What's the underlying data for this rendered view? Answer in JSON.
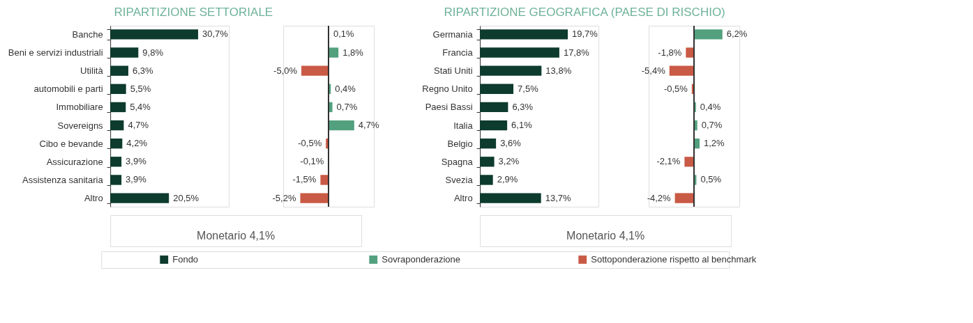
{
  "chart_data": [
    {
      "type": "bar",
      "orientation": "horizontal",
      "title": "RIPARTIZIONE SETTORIALE",
      "categories": [
        "Banche",
        "Beni e servizi industriali",
        "Utilità",
        "automobili e parti",
        "Immobiliare",
        "Sovereigns",
        "Cibo e bevande",
        "Assicurazione",
        "Assistenza sanitaria",
        "Altro"
      ],
      "legend": "bottom",
      "annotations": [
        "Monetario 4,1%"
      ],
      "series": [
        {
          "name": "Fondo",
          "color": "#0d3b2e",
          "values": [
            30.7,
            9.8,
            6.3,
            5.5,
            5.4,
            4.7,
            4.2,
            3.9,
            3.9,
            20.5
          ],
          "value_labels": [
            "30,7%",
            "9,8%",
            "6,3%",
            "5,5%",
            "5,4%",
            "4,7%",
            "4,2%",
            "3,9%",
            "3,9%",
            "20,5%"
          ]
        }
      ]
    },
    {
      "type": "bar",
      "orientation": "horizontal",
      "categories": [
        null,
        null,
        null,
        null,
        null,
        null,
        null,
        null,
        null,
        null
      ],
      "legend": "bottom",
      "series": [
        {
          "name": "Sovraponderazione",
          "color": "#52a07e",
          "values": [
            0.1,
            1.8,
            null,
            0.4,
            0.7,
            4.7,
            null,
            null,
            null,
            null
          ],
          "value_labels": [
            "0,1%",
            "1,8%",
            null,
            "0,4%",
            "0,7%",
            "4,7%",
            null,
            null,
            null,
            null
          ]
        },
        {
          "name": "Sottoponderazione rispetto al benchmark",
          "color": "#c95a45",
          "values": [
            null,
            null,
            -5.0,
            null,
            null,
            null,
            -0.5,
            -0.1,
            -1.5,
            -5.2
          ],
          "value_labels": [
            null,
            null,
            "-5,0%",
            null,
            null,
            null,
            "-0,5%",
            "-0,1%",
            "-1,5%",
            "-5,2%"
          ]
        }
      ]
    },
    {
      "type": "bar",
      "orientation": "horizontal",
      "title": "RIPARTIZIONE GEOGRAFICA (PAESE DI RISCHIO)",
      "categories": [
        "Germania",
        "Francia",
        "Stati Uniti",
        "Regno Unito",
        "Paesi Bassi",
        "Italia",
        "Belgio",
        "Spagna",
        "Svezia",
        "Altro"
      ],
      "legend": "bottom",
      "annotations": [
        "Monetario 4,1%"
      ],
      "series": [
        {
          "name": "Fondo",
          "color": "#0d3b2e",
          "values": [
            19.7,
            17.8,
            13.8,
            7.5,
            6.3,
            6.1,
            3.6,
            3.2,
            2.9,
            13.7
          ],
          "value_labels": [
            "19,7%",
            "17,8%",
            "13,8%",
            "7,5%",
            "6,3%",
            "6,1%",
            "3,6%",
            "3,2%",
            "2,9%",
            "13,7%"
          ]
        }
      ]
    },
    {
      "type": "bar",
      "orientation": "horizontal",
      "categories": [
        null,
        null,
        null,
        null,
        null,
        null,
        null,
        null,
        null,
        null
      ],
      "legend": "bottom",
      "series": [
        {
          "name": "Sovraponderazione",
          "color": "#52a07e",
          "values": [
            6.2,
            null,
            null,
            null,
            0.4,
            0.7,
            1.2,
            null,
            0.5,
            null
          ],
          "value_labels": [
            "6,2%",
            null,
            null,
            null,
            "0,4%",
            "0,7%",
            "1,2%",
            null,
            "0,5%",
            null
          ]
        },
        {
          "name": "Sottoponderazione rispetto al benchmark",
          "color": "#c95a45",
          "values": [
            null,
            -1.8,
            -5.4,
            -0.5,
            null,
            null,
            null,
            -2.1,
            null,
            -4.2
          ],
          "value_labels": [
            null,
            "-1,8%",
            "-5,4%",
            "-0,5%",
            null,
            null,
            null,
            "-2,1%",
            null,
            "-4,2%"
          ]
        }
      ]
    }
  ]
}
